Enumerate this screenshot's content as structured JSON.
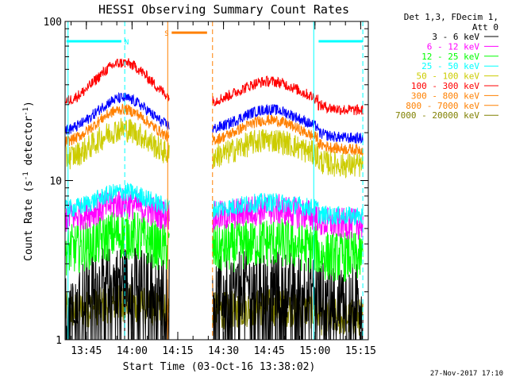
{
  "chart_data": {
    "type": "line",
    "title": "HESSI Observing Summary Count Rates",
    "xlabel": "Start Time (03-Oct-16 13:38:02)",
    "ylabel_main": "Count Rate (s",
    "ylabel_sup1": "-1",
    "ylabel_mid": " detector",
    "ylabel_sup2": "-1",
    "ylabel_end": ")",
    "yscale": "log",
    "ylim": [
      1,
      100
    ],
    "xlim_min": [
      38.03,
      137.5
    ],
    "y_ticks": [
      {
        "value": 1,
        "label": "1"
      },
      {
        "value": 10,
        "label": "10"
      },
      {
        "value": 100,
        "label": "100"
      }
    ],
    "x_ticks": [
      {
        "value": 45,
        "label": "13:45"
      },
      {
        "value": 60,
        "label": "14:00"
      },
      {
        "value": 75,
        "label": "14:15"
      },
      {
        "value": 90,
        "label": "14:30"
      },
      {
        "value": 105,
        "label": "14:45"
      },
      {
        "value": 120,
        "label": "15:00"
      },
      {
        "value": 135,
        "label": "15:15"
      }
    ],
    "legend_header": [
      "Det 1,3, FDecim 1,",
      "Att 0"
    ],
    "legend_position": "right",
    "gap_min": [
      72.2,
      86.0
    ],
    "flags": [
      {
        "label": "N",
        "color": "#00ffff",
        "segments": [
          [
            38.5,
            56.5
          ],
          [
            121.2,
            135.6
          ]
        ],
        "level": 75,
        "dash_lines": [
          57.6,
          135.7
        ],
        "solid_lines": [
          39.0,
          119.6
        ]
      },
      {
        "label": "S",
        "color": "#ff8000",
        "segments": [
          [
            73.0,
            84.6
          ]
        ],
        "level": 85,
        "dash_lines": [
          86.4
        ],
        "solid_lines": [
          71.7
        ]
      }
    ],
    "series": [
      {
        "name": "3 - 6 keV",
        "color": "#000000",
        "base": 2.0,
        "peak1": 2.4,
        "peak2": 2.3,
        "noise": 0.22,
        "low_cut": 1.0
      },
      {
        "name": "6 - 12 keV",
        "color": "#ff00ff",
        "base": 5.8,
        "peak1": 7.2,
        "peak2": 6.6,
        "noise": 0.1
      },
      {
        "name": "12 - 25 keV",
        "color": "#00ff00",
        "base": 3.6,
        "peak1": 4.6,
        "peak2": 4.1,
        "noise": 0.16
      },
      {
        "name": "25 - 50 keV",
        "color": "#00ffff",
        "base": 6.5,
        "peak1": 8.5,
        "peak2": 7.3,
        "noise": 0.06
      },
      {
        "name": "50 - 100 keV",
        "color": "#cccc00",
        "base": 13.5,
        "peak1": 21.0,
        "peak2": 18.0,
        "noise": 0.08
      },
      {
        "name": "100 - 300 keV",
        "color": "#ff0000",
        "base": 30.0,
        "peak1": 55.0,
        "peak2": 42.0,
        "noise": 0.035
      },
      {
        "name": "300 - 800 keV",
        "color": "#ff8000",
        "base": 17.0,
        "peak1": 28.0,
        "peak2": 24.0,
        "noise": 0.035
      },
      {
        "name": "800 - 7000 keV",
        "color": "#ff8000",
        "base": 1.0,
        "peak1": 1.0,
        "peak2": 1.0,
        "noise": 0.0
      },
      {
        "name": "7000 - 20000 keV",
        "color": "#808000",
        "base": 1.5,
        "peak1": 1.7,
        "peak2": 1.6,
        "noise": 0.12
      },
      {
        "name": "",
        "color": "#0000ff",
        "base": 20.0,
        "peak1": 33.0,
        "peak2": 28.0,
        "noise": 0.035
      }
    ]
  },
  "footer": {
    "timestamp": "27-Nov-2017 17:10"
  }
}
